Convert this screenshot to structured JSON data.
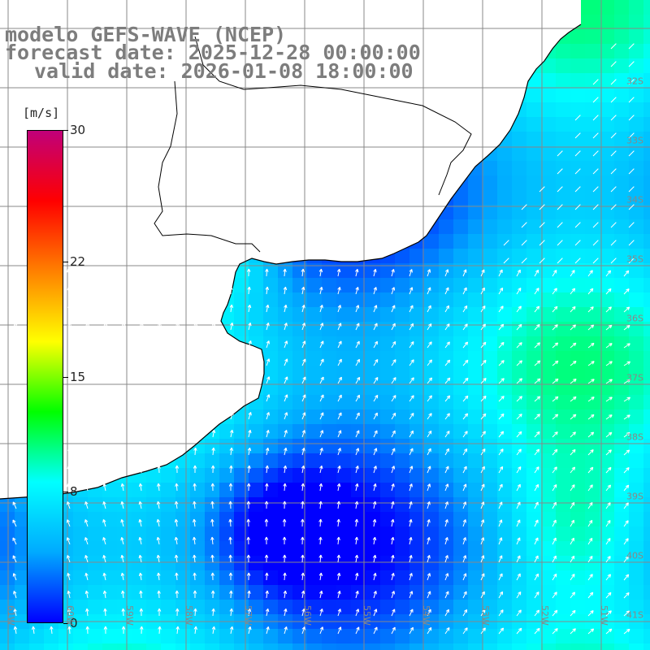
{
  "header": {
    "line1": "modelo GEFS-WAVE (NCEP)",
    "line2": "forecast date: 2025-12-28 00:00:00",
    "line3": "valid date: 2026-01-08 18:00:00"
  },
  "colorbar": {
    "unit": "[m/s]",
    "ticks": [
      "30",
      "22",
      "15",
      "8",
      "0"
    ],
    "tick_values": [
      30,
      22,
      15,
      8,
      0
    ],
    "min": 0,
    "max": 30,
    "colors": [
      "#0000ff",
      "#00aaff",
      "#00ffff",
      "#00ff00",
      "#ffff00",
      "#ff8000",
      "#ff0000",
      "#c0007a"
    ]
  },
  "map": {
    "lat_labels": [
      "32S",
      "33S",
      "34S",
      "35S",
      "36S",
      "37S",
      "38S",
      "39S",
      "40S",
      "41S"
    ],
    "lon_labels": [
      "61W",
      "60W",
      "59W",
      "58W",
      "57W",
      "56W",
      "55W",
      "54W",
      "53W",
      "52W",
      "51W"
    ],
    "land_color": "#ffffff",
    "coast_color": "#000000",
    "grid_color": "#888888",
    "arrow_color": "#ffffff"
  }
}
